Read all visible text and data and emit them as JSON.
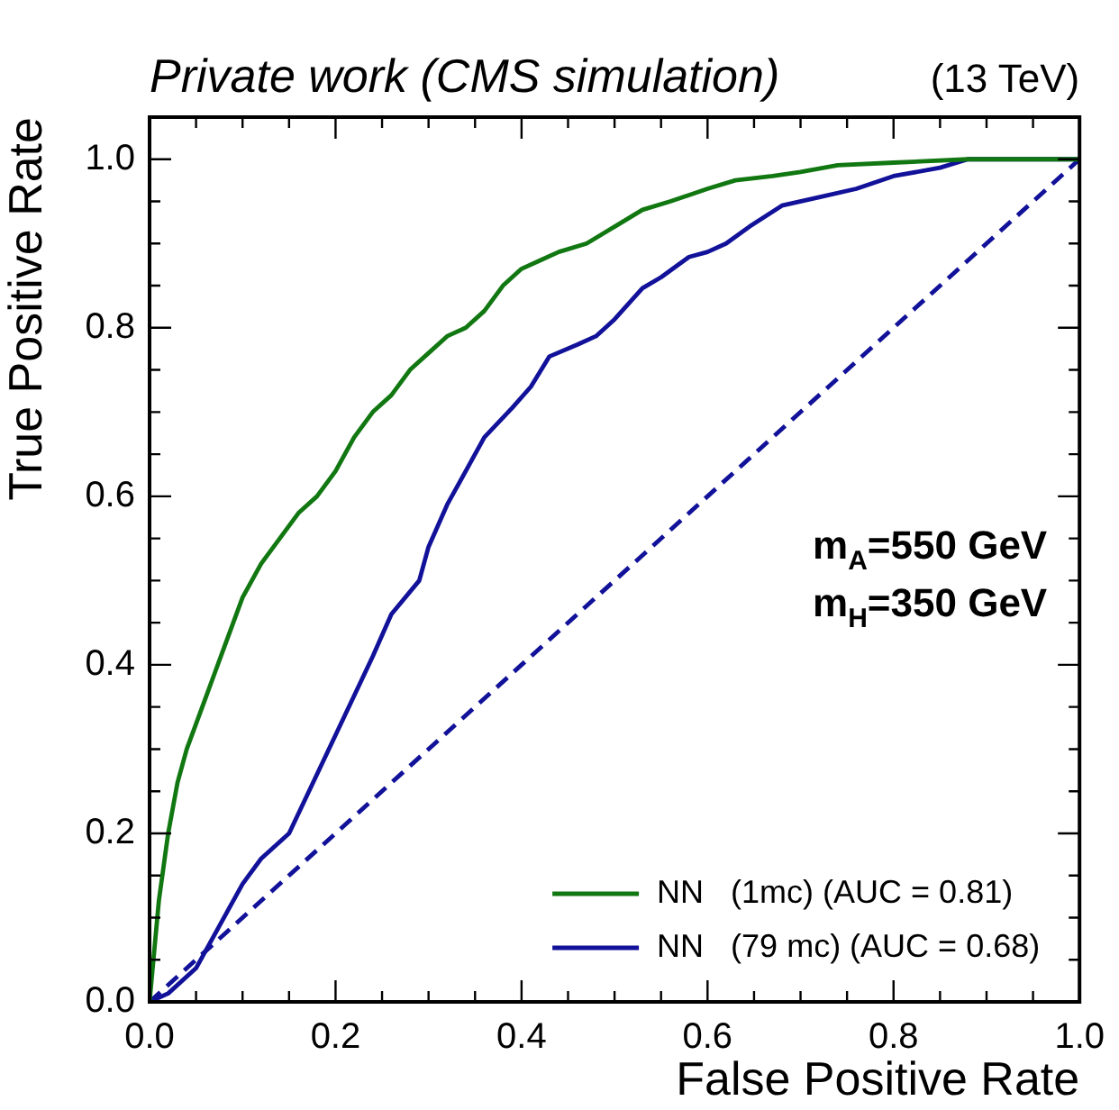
{
  "chart_data": {
    "type": "line",
    "title": "Private work (CMS simulation)",
    "subtitle": "(13 TeV)",
    "xlabel": "False Positive Rate",
    "ylabel": "True Positive Rate",
    "annotations": [
      "m$_{A}$=550 GeV",
      "m$_{H}$=350 GeV"
    ],
    "xlim": [
      0,
      1
    ],
    "ylim": [
      0,
      1.05
    ],
    "xticks": [
      {
        "value": 0,
        "label": "0.0"
      },
      {
        "value": 0.05,
        "label": null
      },
      {
        "value": 0.1,
        "label": null
      },
      {
        "value": 0.15,
        "label": null
      },
      0.2,
      {
        "value": 0.25,
        "label": null
      },
      {
        "value": 0.3,
        "label": null
      },
      {
        "value": 0.35,
        "label": null
      },
      0.4,
      {
        "value": 0.45,
        "label": null
      },
      {
        "value": 0.5,
        "label": null
      },
      {
        "value": 0.55,
        "label": null
      },
      0.6,
      {
        "value": 0.65,
        "label": null
      },
      {
        "value": 0.7,
        "label": null
      },
      {
        "value": 0.75,
        "label": null
      },
      0.8,
      {
        "value": 0.85,
        "label": null
      },
      {
        "value": 0.9,
        "label": null
      },
      {
        "value": 0.95,
        "label": null
      },
      {
        "value": 1,
        "label": "1.0"
      }
    ],
    "yticks": [
      {
        "value": 0,
        "label": "0.0"
      },
      {
        "value": 0.05,
        "label": null
      },
      {
        "value": 0.1,
        "label": null
      },
      {
        "value": 0.15,
        "label": null
      },
      0.2,
      {
        "value": 0.25,
        "label": null
      },
      {
        "value": 0.3,
        "label": null
      },
      {
        "value": 0.35,
        "label": null
      },
      0.4,
      {
        "value": 0.45,
        "label": null
      },
      {
        "value": 0.5,
        "label": null
      },
      {
        "value": 0.55,
        "label": null
      },
      0.6,
      {
        "value": 0.65,
        "label": null
      },
      {
        "value": 0.7,
        "label": null
      },
      {
        "value": 0.75,
        "label": null
      },
      0.8,
      {
        "value": 0.85,
        "label": null
      },
      {
        "value": 0.9,
        "label": null
      },
      {
        "value": 0.95,
        "label": null
      },
      {
        "value": 1,
        "label": "1.0"
      }
    ],
    "grid": false,
    "legend": "bottom right",
    "marker": "none",
    "series": [
      {
        "name": "NN   (1mc) (AUC = 0.81)",
        "color": "#117711",
        "line_style": "solid",
        "x": [
          0,
          0.005,
          0.01,
          0.02,
          0.03,
          0.04,
          0.05,
          0.06,
          0.07,
          0.08,
          0.09,
          0.1,
          0.12,
          0.14,
          0.16,
          0.18,
          0.2,
          0.22,
          0.24,
          0.26,
          0.28,
          0.3,
          0.32,
          0.34,
          0.36,
          0.38,
          0.4,
          0.42,
          0.44,
          0.47,
          0.5,
          0.53,
          0.56,
          0.6,
          0.63,
          0.67,
          0.7,
          0.74,
          0.8,
          0.88,
          1
        ],
        "values": [
          0,
          0.06,
          0.12,
          0.2,
          0.26,
          0.3,
          0.33,
          0.36,
          0.39,
          0.42,
          0.45,
          0.48,
          0.52,
          0.55,
          0.58,
          0.6,
          0.63,
          0.67,
          0.7,
          0.72,
          0.75,
          0.77,
          0.79,
          0.8,
          0.82,
          0.85,
          0.87,
          0.88,
          0.89,
          0.9,
          0.92,
          0.94,
          0.95,
          0.965,
          0.975,
          0.98,
          0.985,
          0.993,
          0.996,
          1,
          1
        ]
      },
      {
        "name": "NN   (79 mc) (AUC = 0.68)",
        "color": "#111199",
        "line_style": "solid",
        "x": [
          0,
          0.02,
          0.05,
          0.085,
          0.1,
          0.12,
          0.15,
          0.18,
          0.21,
          0.24,
          0.26,
          0.29,
          0.3,
          0.32,
          0.34,
          0.36,
          0.39,
          0.41,
          0.43,
          0.46,
          0.48,
          0.5,
          0.53,
          0.55,
          0.58,
          0.6,
          0.62,
          0.645,
          0.68,
          0.72,
          0.76,
          0.8,
          0.85,
          0.88,
          1
        ],
        "values": [
          0,
          0.01,
          0.04,
          0.11,
          0.14,
          0.17,
          0.2,
          0.27,
          0.34,
          0.41,
          0.46,
          0.5,
          0.54,
          0.59,
          0.63,
          0.67,
          0.705,
          0.73,
          0.766,
          0.78,
          0.79,
          0.81,
          0.847,
          0.86,
          0.884,
          0.89,
          0.9,
          0.92,
          0.945,
          0.955,
          0.965,
          0.98,
          0.99,
          1,
          1
        ]
      },
      {
        "color": "#111199",
        "line_style": "dashed",
        "x": [
          0,
          1
        ],
        "values": [
          0,
          1
        ]
      }
    ]
  }
}
